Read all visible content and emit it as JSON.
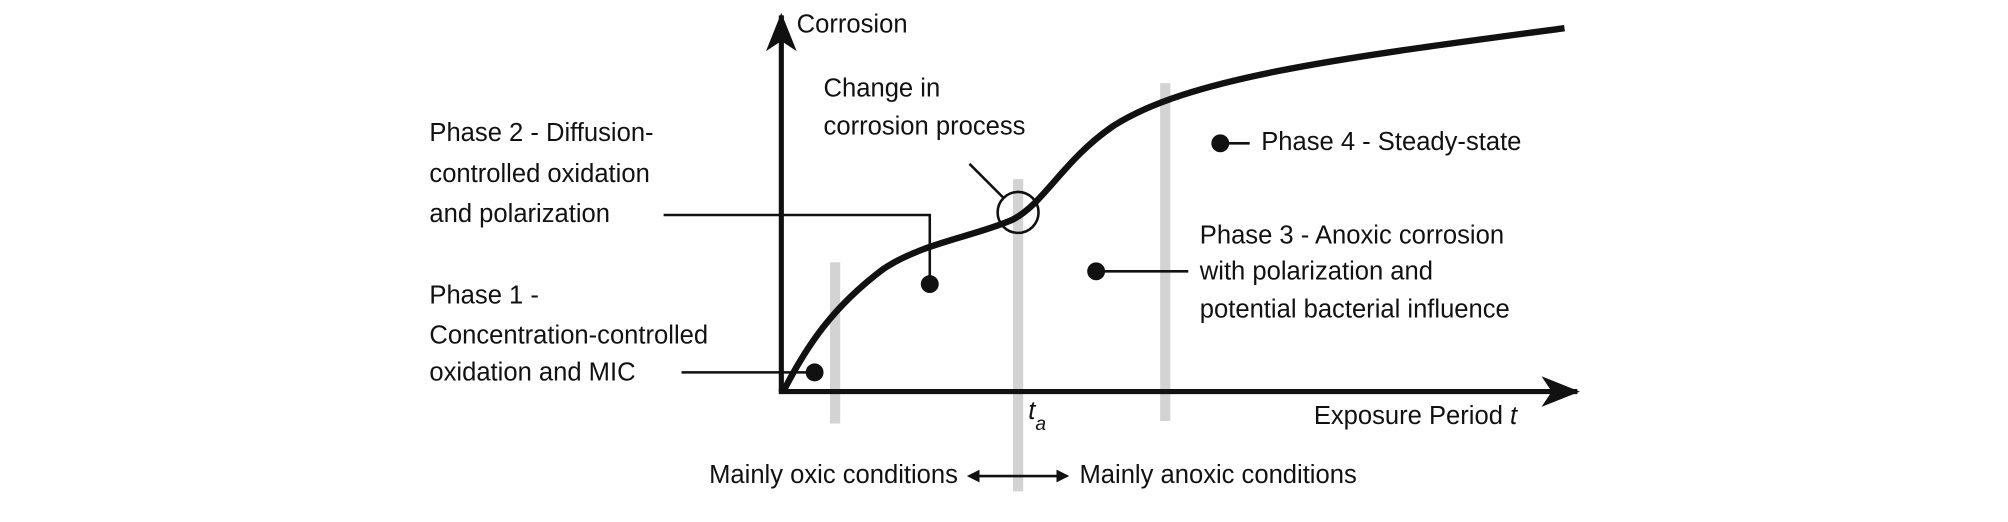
{
  "y_axis_label": "Corrosion",
  "x_axis_label": "Exposure Period",
  "x_axis_symbol": "t",
  "transition_symbol": "t",
  "transition_subscript": "a",
  "change_label": [
    "Change in",
    "corrosion process"
  ],
  "phases": [
    {
      "lines": [
        "Phase 1 -",
        "Concentration-controlled",
        "oxidation and MIC"
      ]
    },
    {
      "lines": [
        "Phase 2 - Diffusion-",
        "controlled oxidation",
        "and polarization"
      ]
    },
    {
      "lines": [
        "Phase 3 - Anoxic corrosion",
        "with polarization and",
        "potential bacterial influence"
      ]
    },
    {
      "lines": [
        "Phase 4 - Steady-state"
      ]
    }
  ],
  "conditions": {
    "oxic": "Mainly oxic conditions",
    "anoxic": "Mainly anoxic conditions"
  }
}
